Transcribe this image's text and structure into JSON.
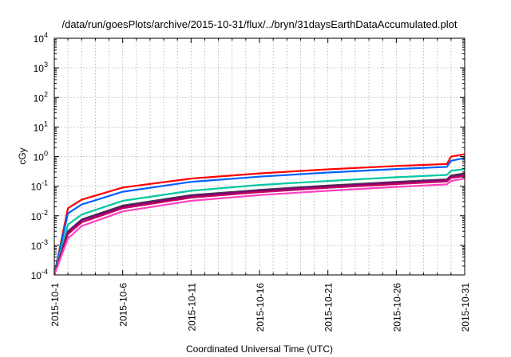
{
  "chart_data": {
    "type": "line",
    "title": "/data/run/goesPlots/archive/2015-10-31/flux/../bryn/31daysEarthDataAccumulated.plot",
    "xlabel": "Coordinated Universal Time (UTC)",
    "ylabel": "cGy",
    "yscale": "log",
    "ylim": [
      0.0001,
      10000
    ],
    "xlim": [
      "2015-10-01",
      "2015-10-31"
    ],
    "grid": true,
    "x_ticks": [
      "2015-10-1",
      "2015-10-6",
      "2015-10-11",
      "2015-10-16",
      "2015-10-21",
      "2015-10-26",
      "2015-10-31"
    ],
    "y_ticks": [
      {
        "base": "10",
        "exp": "-4"
      },
      {
        "base": "10",
        "exp": "-3"
      },
      {
        "base": "10",
        "exp": "-2"
      },
      {
        "base": "10",
        "exp": "-1"
      },
      {
        "base": "10",
        "exp": "0"
      },
      {
        "base": "10",
        "exp": "1"
      },
      {
        "base": "10",
        "exp": "2"
      },
      {
        "base": "10",
        "exp": "3"
      },
      {
        "base": "10",
        "exp": "4"
      }
    ],
    "x": [
      "2015-10-01",
      "2015-10-02",
      "2015-10-03",
      "2015-10-06",
      "2015-10-11",
      "2015-10-16",
      "2015-10-21",
      "2015-10-26",
      "2015-10-29.7",
      "2015-10-30",
      "2015-10-31"
    ],
    "series": [
      {
        "color": "#ff0000",
        "values": [
          0.0001,
          0.018,
          0.035,
          0.09,
          0.18,
          0.27,
          0.37,
          0.48,
          0.56,
          1.0,
          1.2
        ]
      },
      {
        "color": "#0060ff",
        "values": [
          0.0001,
          0.012,
          0.024,
          0.065,
          0.14,
          0.21,
          0.29,
          0.38,
          0.45,
          0.72,
          0.9
        ]
      },
      {
        "color": "#00c8a0",
        "values": [
          0.0001,
          0.005,
          0.011,
          0.032,
          0.07,
          0.11,
          0.15,
          0.2,
          0.24,
          0.33,
          0.38
        ]
      },
      {
        "color": "#404040",
        "values": [
          0.0001,
          0.003,
          0.0075,
          0.022,
          0.05,
          0.075,
          0.105,
          0.14,
          0.17,
          0.23,
          0.27
        ]
      },
      {
        "color": "#800080",
        "values": [
          0.0001,
          0.0028,
          0.007,
          0.02,
          0.046,
          0.07,
          0.098,
          0.13,
          0.16,
          0.21,
          0.24
        ]
      },
      {
        "color": "#c0005a",
        "values": [
          0.0001,
          0.0024,
          0.006,
          0.018,
          0.041,
          0.063,
          0.088,
          0.118,
          0.145,
          0.19,
          0.22
        ]
      },
      {
        "color": "#ff40c0",
        "values": [
          0.0001,
          0.0017,
          0.0045,
          0.014,
          0.032,
          0.05,
          0.07,
          0.095,
          0.115,
          0.15,
          0.18
        ]
      }
    ]
  }
}
